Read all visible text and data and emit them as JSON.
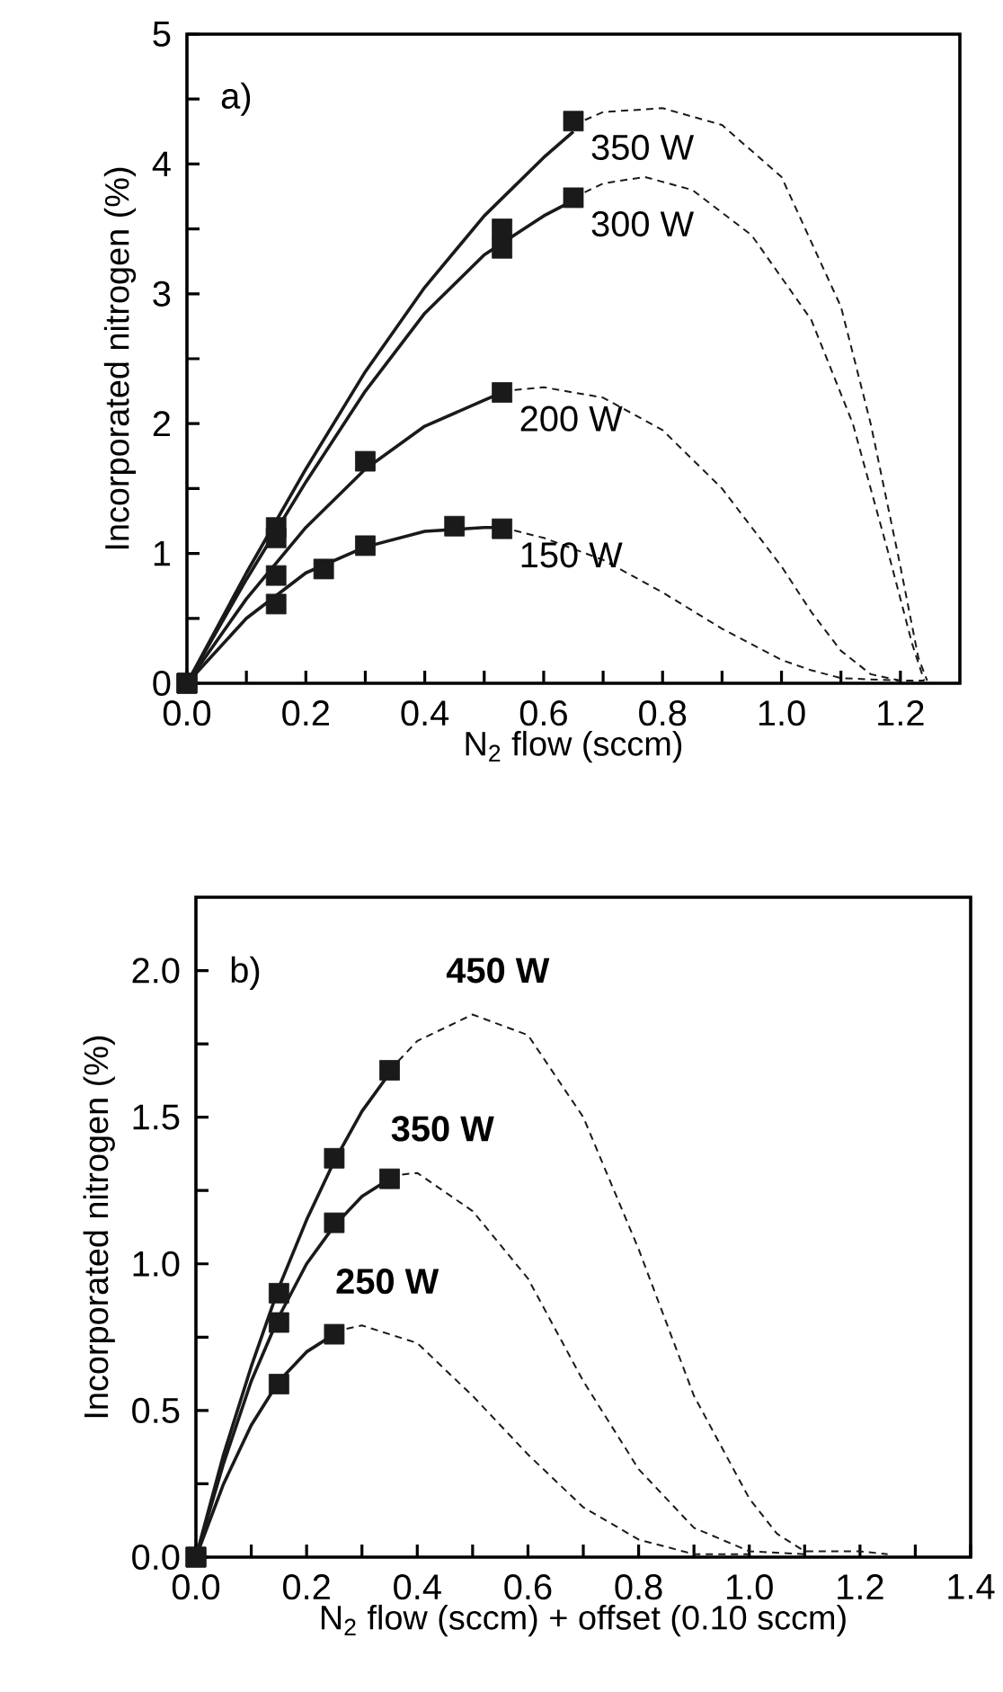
{
  "chart_data": [
    {
      "type": "scatter",
      "xlabel": "N$_{2}$ flow (sccm)",
      "ylabel": "Incorporated nitrogen (%)",
      "annotations": [
        "a)"
      ],
      "xlim": [
        0,
        1.3
      ],
      "ylim": [
        0,
        5
      ],
      "xticks": [
        {
          "value": 0,
          "label": "0.0"
        },
        {
          "value": 0.1,
          "label": null
        },
        {
          "value": 0.2,
          "label": "0.2"
        },
        {
          "value": 0.3,
          "label": null
        },
        {
          "value": 0.4,
          "label": "0.4"
        },
        {
          "value": 0.5,
          "label": null
        },
        {
          "value": 0.6,
          "label": "0.6"
        },
        {
          "value": 0.7,
          "label": null
        },
        {
          "value": 0.8,
          "label": "0.8"
        },
        {
          "value": 0.9,
          "label": null
        },
        {
          "value": 1.0,
          "label": "1.0"
        },
        {
          "value": 1.1,
          "label": null
        },
        {
          "value": 1.2,
          "label": "1.2"
        }
      ],
      "yticks": [
        0,
        {
          "value": 0.5,
          "label": null
        },
        1,
        {
          "value": 1.5,
          "label": null
        },
        2,
        {
          "value": 2.5,
          "label": null
        },
        3,
        {
          "value": 3.5,
          "label": null
        },
        4,
        {
          "value": 4.5,
          "label": null
        },
        5
      ],
      "series": [
        {
          "type": "line",
          "line_style": "solid",
          "color": "#1a1a1a",
          "x": [
            0,
            0.1,
            0.2,
            0.3,
            0.4,
            0.5,
            0.6,
            0.65
          ],
          "values": [
            0,
            0.85,
            1.65,
            2.4,
            3.05,
            3.6,
            4.05,
            4.25
          ]
        },
        {
          "type": "line",
          "line_style": "dashed",
          "color": "#1a1a1a",
          "x": [
            0.65,
            0.7,
            0.8,
            0.9,
            1.0,
            1.1,
            1.15,
            1.2,
            1.23,
            1.245
          ],
          "values": [
            4.3,
            4.4,
            4.43,
            4.3,
            3.9,
            2.9,
            2.0,
            0.9,
            0.2,
            0.02
          ]
        },
        {
          "marker": "square",
          "name": "350 W",
          "color": "#1a1a1a",
          "x": [
            0,
            0.15,
            0.53,
            0.65
          ],
          "values": [
            0,
            1.2,
            3.5,
            4.33
          ]
        },
        {
          "type": "line",
          "line_style": "solid",
          "color": "#1a1a1a",
          "x": [
            0,
            0.1,
            0.2,
            0.3,
            0.4,
            0.5,
            0.6,
            0.65
          ],
          "values": [
            0,
            0.8,
            1.55,
            2.25,
            2.85,
            3.3,
            3.6,
            3.72
          ]
        },
        {
          "type": "line",
          "line_style": "dashed",
          "color": "#1a1a1a",
          "x": [
            0.65,
            0.7,
            0.77,
            0.85,
            0.95,
            1.05,
            1.12,
            1.18,
            1.22,
            1.24
          ],
          "values": [
            3.74,
            3.85,
            3.9,
            3.8,
            3.45,
            2.8,
            2.0,
            1.0,
            0.3,
            0.02
          ]
        },
        {
          "marker": "square",
          "name": "300 W",
          "color": "#1a1a1a",
          "x": [
            0,
            0.15,
            0.53,
            0.65
          ],
          "values": [
            0,
            1.12,
            3.35,
            3.74
          ]
        },
        {
          "type": "line",
          "line_style": "solid",
          "color": "#1a1a1a",
          "x": [
            0,
            0.1,
            0.2,
            0.3,
            0.4,
            0.5,
            0.53
          ],
          "values": [
            0,
            0.65,
            1.2,
            1.65,
            1.98,
            2.18,
            2.24
          ]
        },
        {
          "type": "line",
          "line_style": "dashed",
          "color": "#1a1a1a",
          "x": [
            0.53,
            0.6,
            0.7,
            0.8,
            0.9,
            1.0,
            1.05,
            1.1,
            1.15,
            1.2,
            1.24
          ],
          "values": [
            2.25,
            2.28,
            2.2,
            1.95,
            1.5,
            0.9,
            0.55,
            0.25,
            0.07,
            0.02,
            0.02
          ]
        },
        {
          "marker": "square",
          "name": "200 W",
          "color": "#1a1a1a",
          "x": [
            0,
            0.15,
            0.3,
            0.53
          ],
          "values": [
            0,
            0.83,
            1.71,
            2.24
          ]
        },
        {
          "type": "line",
          "line_style": "solid",
          "color": "#1a1a1a",
          "x": [
            0,
            0.1,
            0.2,
            0.3,
            0.4,
            0.5,
            0.53
          ],
          "values": [
            0,
            0.5,
            0.85,
            1.05,
            1.17,
            1.2,
            1.2
          ]
        },
        {
          "type": "line",
          "line_style": "dashed",
          "color": "#1a1a1a",
          "x": [
            0.53,
            0.6,
            0.7,
            0.8,
            0.9,
            1.0,
            1.05,
            1.1,
            1.2
          ],
          "values": [
            1.2,
            1.12,
            0.95,
            0.7,
            0.42,
            0.18,
            0.1,
            0.04,
            0.02
          ]
        },
        {
          "marker": "square",
          "name": "150 W",
          "color": "#1a1a1a",
          "x": [
            0,
            0.15,
            0.23,
            0.3,
            0.45,
            0.53
          ],
          "values": [
            0,
            0.61,
            0.88,
            1.06,
            1.21,
            1.19
          ]
        }
      ]
    },
    {
      "type": "scatter",
      "xlabel": "N$_{2}$ flow (sccm) + offset (0.10 sccm)",
      "ylabel": "Incorporated nitrogen (%)",
      "annotations": [
        "b)"
      ],
      "xlim": [
        0,
        1.4
      ],
      "ylim": [
        0,
        2.25
      ],
      "xticks": [
        {
          "value": 0,
          "label": "0.0"
        },
        {
          "value": 0.1,
          "label": null
        },
        {
          "value": 0.2,
          "label": "0.2"
        },
        {
          "value": 0.3,
          "label": null
        },
        {
          "value": 0.4,
          "label": "0.4"
        },
        {
          "value": 0.5,
          "label": null
        },
        {
          "value": 0.6,
          "label": "0.6"
        },
        {
          "value": 0.7,
          "label": null
        },
        {
          "value": 0.8,
          "label": "0.8"
        },
        {
          "value": 0.9,
          "label": null
        },
        {
          "value": 1.0,
          "label": "1.0"
        },
        {
          "value": 1.1,
          "label": null
        },
        {
          "value": 1.2,
          "label": "1.2"
        },
        {
          "value": 1.3,
          "label": null
        },
        {
          "value": 1.4,
          "label": "1.4"
        }
      ],
      "yticks": [
        {
          "value": 0,
          "label": "0.0"
        },
        {
          "value": 0.25,
          "label": null
        },
        {
          "value": 0.5,
          "label": "0.5"
        },
        {
          "value": 0.75,
          "label": null
        },
        {
          "value": 1.0,
          "label": "1.0"
        },
        {
          "value": 1.25,
          "label": null
        },
        {
          "value": 1.5,
          "label": "1.5"
        },
        {
          "value": 1.75,
          "label": null
        },
        {
          "value": 2.0,
          "label": "2.0"
        }
      ],
      "series": [
        {
          "type": "line",
          "line_style": "solid",
          "color": "#1a1a1a",
          "x": [
            0,
            0.05,
            0.1,
            0.15,
            0.2,
            0.25,
            0.3,
            0.35
          ],
          "values": [
            0,
            0.35,
            0.65,
            0.92,
            1.15,
            1.35,
            1.52,
            1.65
          ]
        },
        {
          "type": "line",
          "line_style": "dashed",
          "color": "#1a1a1a",
          "x": [
            0.35,
            0.4,
            0.5,
            0.6,
            0.7,
            0.8,
            0.9,
            1.0,
            1.05,
            1.1,
            1.2,
            1.25
          ],
          "values": [
            1.66,
            1.76,
            1.85,
            1.78,
            1.5,
            1.05,
            0.55,
            0.2,
            0.08,
            0.02,
            0.02,
            0.01
          ]
        },
        {
          "marker": "square",
          "name": "450 W",
          "color": "#1a1a1a",
          "x": [
            0,
            0.15,
            0.25,
            0.35
          ],
          "values": [
            0,
            0.9,
            1.36,
            1.66
          ]
        },
        {
          "type": "line",
          "line_style": "solid",
          "color": "#1a1a1a",
          "x": [
            0,
            0.05,
            0.1,
            0.15,
            0.2,
            0.25,
            0.3,
            0.35
          ],
          "values": [
            0,
            0.32,
            0.6,
            0.82,
            1.0,
            1.13,
            1.23,
            1.29
          ]
        },
        {
          "type": "line",
          "line_style": "dashed",
          "color": "#1a1a1a",
          "x": [
            0.35,
            0.4,
            0.5,
            0.6,
            0.7,
            0.8,
            0.9,
            1.0,
            1.1
          ],
          "values": [
            1.3,
            1.31,
            1.18,
            0.95,
            0.6,
            0.3,
            0.1,
            0.02,
            0.01
          ]
        },
        {
          "marker": "square",
          "name": "350 W",
          "color": "#1a1a1a",
          "x": [
            0,
            0.15,
            0.25,
            0.35
          ],
          "values": [
            0,
            0.8,
            1.14,
            1.29
          ]
        },
        {
          "type": "line",
          "line_style": "solid",
          "color": "#1a1a1a",
          "x": [
            0,
            0.05,
            0.1,
            0.15,
            0.2,
            0.25
          ],
          "values": [
            0,
            0.25,
            0.45,
            0.6,
            0.7,
            0.76
          ]
        },
        {
          "type": "line",
          "line_style": "dashed",
          "color": "#1a1a1a",
          "x": [
            0.25,
            0.3,
            0.4,
            0.5,
            0.6,
            0.7,
            0.8,
            0.9,
            1.0
          ],
          "values": [
            0.77,
            0.79,
            0.73,
            0.55,
            0.35,
            0.17,
            0.06,
            0.01,
            0.01
          ]
        },
        {
          "marker": "square",
          "name": "250 W",
          "color": "#1a1a1a",
          "x": [
            0,
            0.15,
            0.25
          ],
          "values": [
            0,
            0.59,
            0.76
          ]
        }
      ]
    }
  ]
}
